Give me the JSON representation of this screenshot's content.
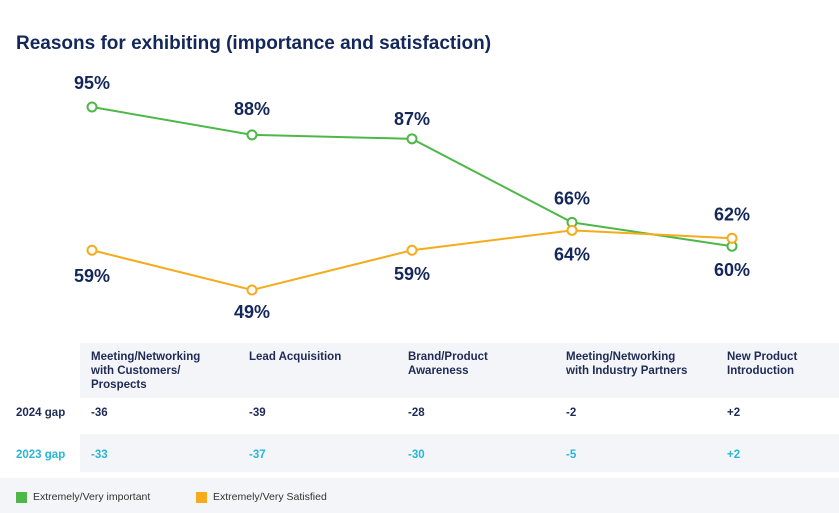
{
  "title": "Reasons for exhibiting (importance and satisfaction)",
  "chart_data": {
    "type": "line",
    "categories": [
      "Meeting/Networking with Customers/ Prospects",
      "Lead Acquisition",
      "Brand/Product Awareness",
      "Meeting/Networking with Industry Partners",
      "New Product Introduction"
    ],
    "series": [
      {
        "name": "Extremely/Very important",
        "color": "#4db848",
        "values": [
          95,
          88,
          87,
          66,
          60
        ],
        "labels": [
          "95%",
          "88%",
          "87%",
          "66%",
          "60%"
        ]
      },
      {
        "name": "Extremely/Very Satisfied",
        "color": "#f5ab1b",
        "values": [
          59,
          49,
          59,
          64,
          62
        ],
        "labels": [
          "59%",
          "49%",
          "59%",
          "64%",
          "62%"
        ]
      }
    ],
    "ylim": [
      40,
      100
    ],
    "legend": "bottom-left"
  },
  "categories_display": [
    [
      "Meeting/Networking",
      "with Customers/",
      "Prospects"
    ],
    [
      "Lead Acquisition"
    ],
    [
      "Brand/Product",
      "Awareness"
    ],
    [
      "Meeting/Networking",
      "with Industry Partners"
    ],
    [
      "New Product",
      "Introduction"
    ]
  ],
  "gaps": {
    "row2024": {
      "label": "2024 gap",
      "values": [
        "-36",
        "-39",
        "-28",
        "-2",
        "+2"
      ]
    },
    "row2023": {
      "label": "2023 gap",
      "values": [
        "-33",
        "-37",
        "-30",
        "-5",
        "+2"
      ]
    }
  },
  "legend": {
    "important": {
      "label": "Extremely/Very important",
      "color": "#4db848"
    },
    "satisfied": {
      "label": "Extremely/Very Satisfied",
      "color": "#f5ab1b"
    }
  }
}
